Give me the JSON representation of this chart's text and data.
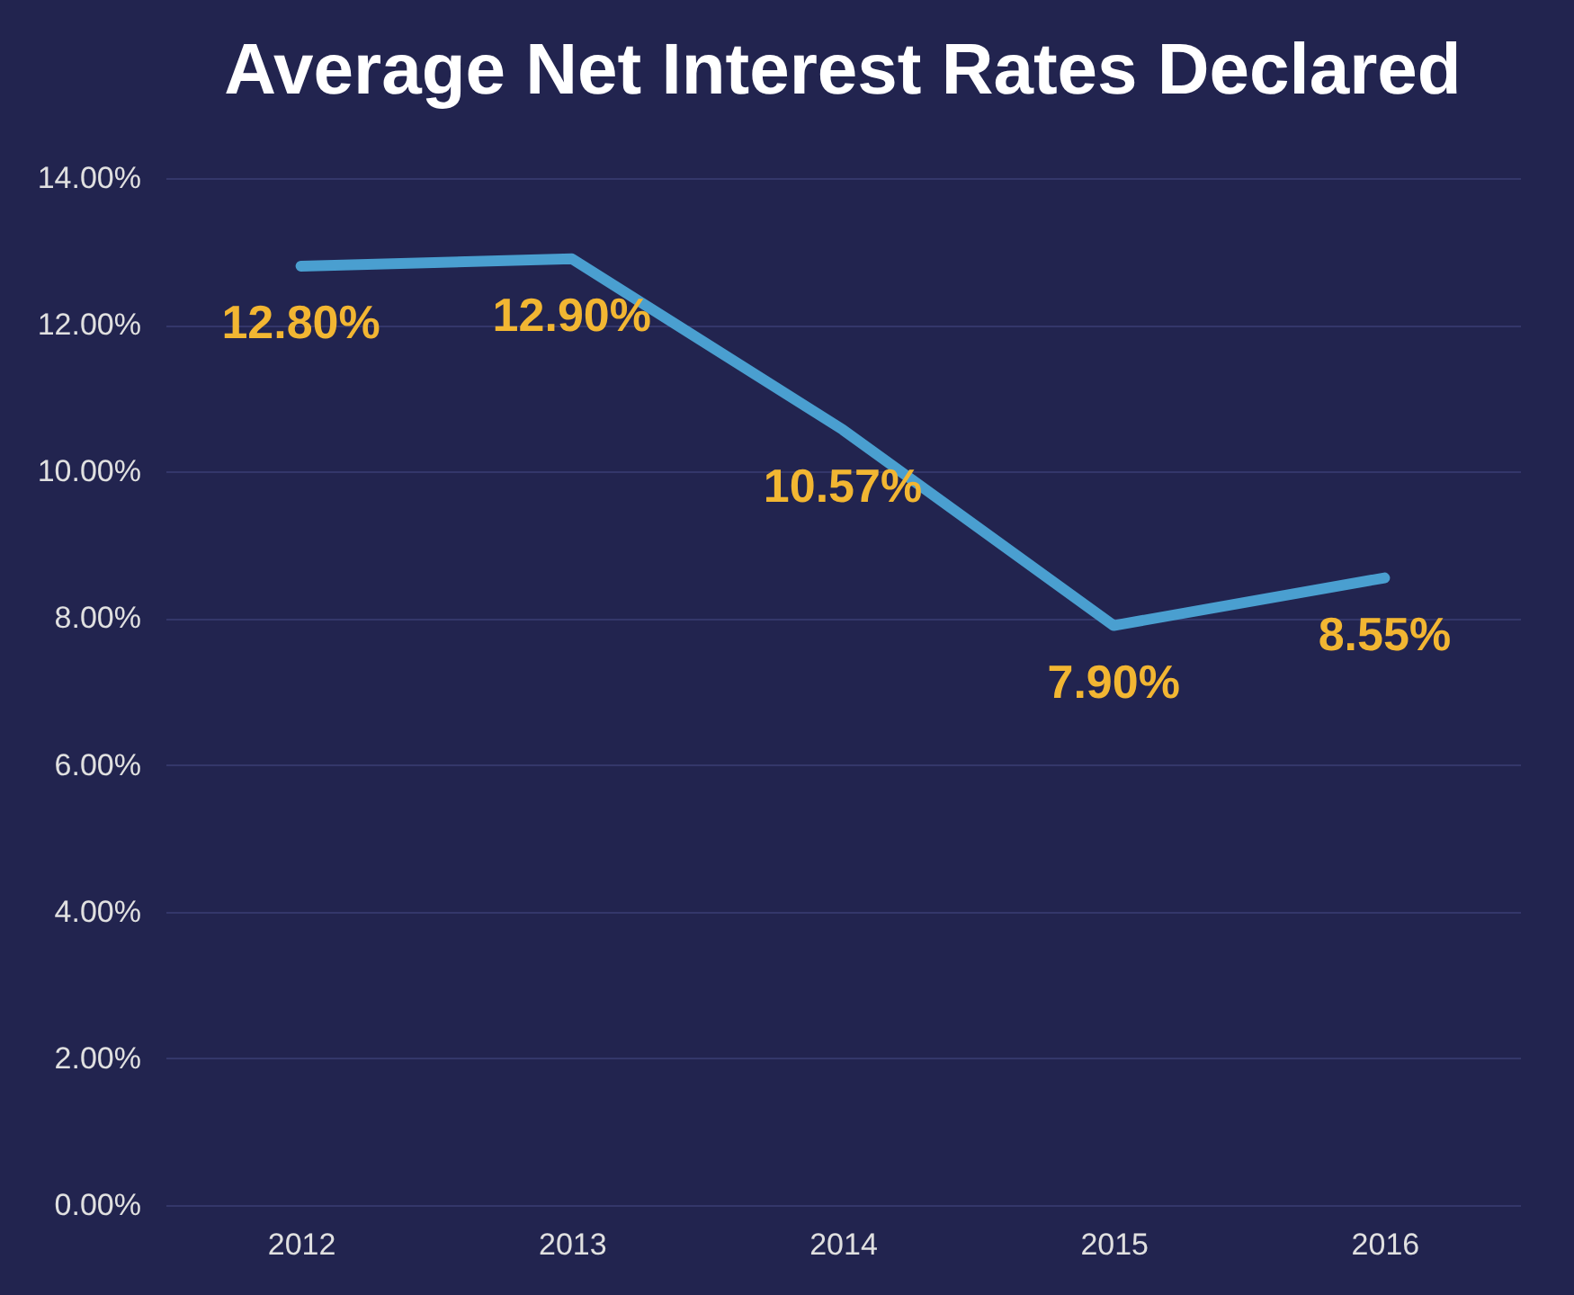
{
  "chart_data": {
    "type": "line",
    "title": "Average Net Interest Rates Declared",
    "categories": [
      "2012",
      "2013",
      "2014",
      "2015",
      "2016"
    ],
    "series": [
      {
        "color": "#4a9fd0",
        "values": [
          12.8,
          12.9,
          10.57,
          7.9,
          8.55
        ],
        "value_labels": [
          "12.80%",
          "12.90%",
          "10.57%",
          "7.90%",
          "8.55%"
        ]
      }
    ],
    "ylim": [
      0,
      14
    ],
    "yticks": [
      {
        "value": 0,
        "label": "0.00%"
      },
      {
        "value": 2,
        "label": "2.00%"
      },
      {
        "value": 4,
        "label": "4.00%"
      },
      {
        "value": 6,
        "label": "6.00%"
      },
      {
        "value": 8,
        "label": "8.00%"
      },
      {
        "value": 10,
        "label": "10.00%"
      },
      {
        "value": 12,
        "label": "12.00%"
      },
      {
        "value": 14,
        "label": "14.00%"
      }
    ],
    "grid": "y",
    "marker": "none",
    "line_style": "solid"
  }
}
